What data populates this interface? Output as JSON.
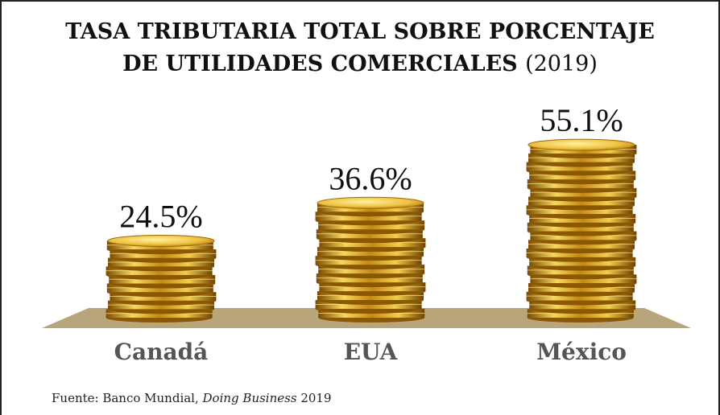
{
  "chart_data": {
    "type": "coin-bar",
    "title": [
      "TASA TRIBUTARIA TOTAL SOBRE PORCENTAJE",
      "DE UTILIDADES COMERCIALES"
    ],
    "subtitle": "(2019)",
    "categories": [
      "Canadá",
      "EUA",
      "México"
    ],
    "values": [
      24.5,
      36.6,
      55.1
    ],
    "value_labels": [
      "24.5%",
      "36.6%",
      "55.1%"
    ],
    "color": "#e8b830",
    "source": [
      "Fuente: Banco Mundial,",
      "Doing Business",
      "2019"
    ]
  }
}
